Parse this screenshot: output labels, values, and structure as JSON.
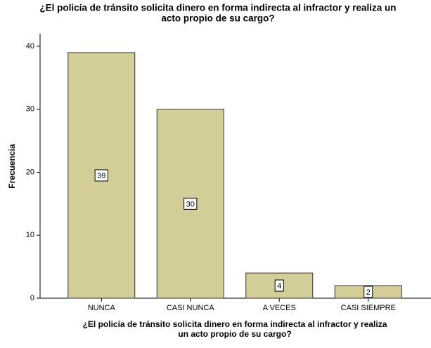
{
  "chart_data": {
    "type": "bar",
    "title": [
      "¿El policía de tránsito solicita dinero en forma indirecta al infractor y realiza un",
      "acto propio de su cargo?"
    ],
    "x_label": [
      "¿El policía de tránsito solicita dinero en forma indirecta al infractor y realiza",
      "un acto propio de su cargo?"
    ],
    "y_label": "Frecuencia",
    "categories": [
      "NUNCA",
      "CASI NUNCA",
      "A VECES",
      "CASI SIEMPRE"
    ],
    "values": [
      39,
      30,
      4,
      2
    ],
    "color": "#d3ce97",
    "ylim": [
      0,
      42
    ],
    "yticks": [
      0,
      10,
      20,
      30,
      40
    ],
    "grid": false
  }
}
